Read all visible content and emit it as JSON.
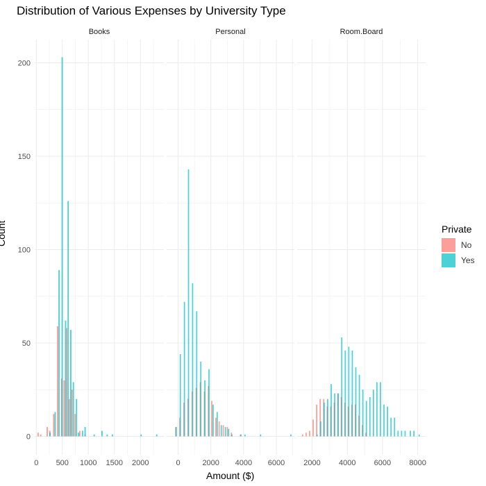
{
  "chart_data": {
    "type": "bar",
    "title": "Distribution of Various Expenses by University Type",
    "xlabel": "Amount ($)",
    "ylabel": "Count",
    "ylim": [
      0,
      200
    ],
    "y_ticks": [
      0,
      50,
      100,
      150,
      200
    ],
    "legend": {
      "title": "Private",
      "position": "right"
    },
    "series_names": [
      "No",
      "Yes"
    ],
    "colors": {
      "No": "#F8766D",
      "Yes": "#00BFC4"
    },
    "bar_opacity": 0.7,
    "grid": true,
    "panels": [
      {
        "name": "Books",
        "xlim": [
          -30,
          2450
        ],
        "x_ticks": [
          0,
          500,
          1000,
          1500,
          2000
        ],
        "bin_width": 55,
        "series": [
          {
            "name": "No",
            "points": [
              [
                50,
                2
              ],
              [
                100,
                1
              ],
              [
                225,
                5
              ],
              [
                275,
                3
              ],
              [
                350,
                12
              ],
              [
                425,
                59
              ],
              [
                500,
                31
              ],
              [
                550,
                30
              ],
              [
                600,
                58
              ],
              [
                650,
                20
              ],
              [
                700,
                25
              ],
              [
                760,
                12
              ],
              [
                850,
                3
              ],
              [
                950,
                1
              ]
            ]
          },
          {
            "name": "Yes",
            "points": [
              [
                250,
                2
              ],
              [
                350,
                13
              ],
              [
                425,
                89
              ],
              [
                485,
                203
              ],
              [
                550,
                62
              ],
              [
                600,
                126
              ],
              [
                650,
                57
              ],
              [
                700,
                29
              ],
              [
                760,
                20
              ],
              [
                800,
                2
              ],
              [
                875,
                3
              ],
              [
                925,
                5
              ],
              [
                1100,
                1
              ],
              [
                1250,
                3
              ],
              [
                1350,
                1
              ],
              [
                1450,
                1
              ],
              [
                2000,
                1
              ],
              [
                2300,
                1
              ]
            ]
          }
        ]
      },
      {
        "name": "Personal",
        "xlim": [
          -700,
          7100
        ],
        "x_ticks": [
          0,
          2000,
          4000,
          6000
        ],
        "bin_width": 160,
        "series": [
          {
            "name": "No",
            "points": [
              [
                -100,
                5
              ],
              [
                150,
                10
              ],
              [
                400,
                18
              ],
              [
                650,
                20
              ],
              [
                900,
                24
              ],
              [
                1150,
                26
              ],
              [
                1400,
                29
              ],
              [
                1650,
                24
              ],
              [
                1900,
                27
              ],
              [
                2100,
                19
              ],
              [
                2350,
                10
              ],
              [
                2550,
                8
              ],
              [
                2800,
                6
              ],
              [
                3050,
                5
              ],
              [
                3300,
                2
              ],
              [
                3850,
                1
              ]
            ]
          },
          {
            "name": "Yes",
            "points": [
              [
                -150,
                5
              ],
              [
                100,
                44
              ],
              [
                350,
                72
              ],
              [
                600,
                143
              ],
              [
                850,
                82
              ],
              [
                1100,
                67
              ],
              [
                1350,
                40
              ],
              [
                1600,
                30
              ],
              [
                1850,
                36
              ],
              [
                2100,
                17
              ],
              [
                2350,
                13
              ],
              [
                2600,
                6
              ],
              [
                2850,
                5
              ],
              [
                3050,
                4
              ],
              [
                3250,
                1
              ],
              [
                3800,
                1
              ],
              [
                4050,
                1
              ],
              [
                5000,
                1
              ],
              [
                6850,
                1
              ]
            ]
          }
        ]
      },
      {
        "name": "Room.Board",
        "xlim": [
          1150,
          8450
        ],
        "x_ticks": [
          2000,
          4000,
          6000,
          8000
        ],
        "bin_width": 150,
        "series": [
          {
            "name": "No",
            "points": [
              [
                1500,
                1
              ],
              [
                1700,
                2
              ],
              [
                1900,
                3
              ],
              [
                2100,
                9
              ],
              [
                2300,
                17
              ],
              [
                2500,
                20
              ],
              [
                2700,
                20
              ],
              [
                2900,
                16
              ],
              [
                3100,
                16
              ],
              [
                3300,
                18
              ],
              [
                3500,
                23
              ],
              [
                3700,
                21
              ],
              [
                3900,
                18
              ],
              [
                4100,
                16
              ],
              [
                4300,
                17
              ],
              [
                4500,
                17
              ],
              [
                4700,
                11
              ],
              [
                4900,
                6
              ],
              [
                5100,
                2
              ]
            ]
          },
          {
            "name": "Yes",
            "points": [
              [
                2250,
                1
              ],
              [
                2450,
                8
              ],
              [
                2650,
                18
              ],
              [
                2850,
                20
              ],
              [
                3050,
                28
              ],
              [
                3250,
                23
              ],
              [
                3450,
                23
              ],
              [
                3650,
                53
              ],
              [
                3850,
                46
              ],
              [
                4050,
                48
              ],
              [
                4250,
                46
              ],
              [
                4450,
                37
              ],
              [
                4650,
                33
              ],
              [
                4850,
                25
              ],
              [
                5050,
                19
              ],
              [
                5250,
                21
              ],
              [
                5450,
                25
              ],
              [
                5650,
                29
              ],
              [
                5850,
                29
              ],
              [
                6050,
                17
              ],
              [
                6250,
                16
              ],
              [
                6450,
                10
              ],
              [
                6650,
                10
              ],
              [
                6850,
                3
              ],
              [
                7050,
                3
              ],
              [
                7250,
                3
              ],
              [
                7550,
                3
              ],
              [
                7750,
                3
              ],
              [
                8050,
                1
              ]
            ]
          }
        ]
      }
    ]
  }
}
